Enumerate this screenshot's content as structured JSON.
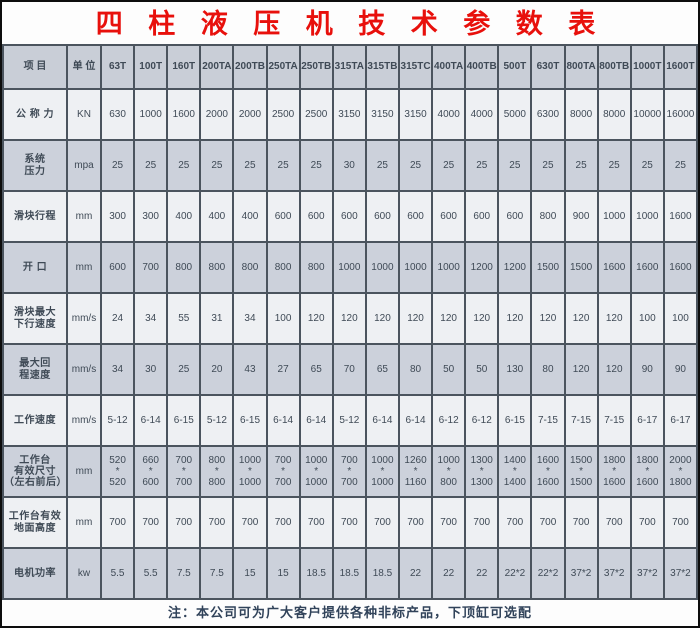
{
  "title": "四 柱 液 压 机 技 术 参 数 表",
  "note": "注：本公司可为广大客户提供各种非标产品，下顶缸可选配",
  "colors": {
    "title_red": "#e8100c",
    "grid_line": "#4b545e",
    "row_shaded": "#ccd1db",
    "row_plain": "#eef0f3",
    "header_bg": "#c9ced7",
    "note_text": "#31435a"
  },
  "table": {
    "header": [
      "项  目",
      "单 位",
      "63T",
      "100T",
      "160T",
      "200TA",
      "200TB",
      "250TA",
      "250TB",
      "315TA",
      "315TB",
      "315TC",
      "400TA",
      "400TB",
      "500T",
      "630T",
      "800TA",
      "800TB",
      "1000T",
      "1600T"
    ],
    "rows": [
      {
        "label": "公 称 力",
        "unit": "KN",
        "values": [
          "630",
          "1000",
          "1600",
          "2000",
          "2000",
          "2500",
          "2500",
          "3150",
          "3150",
          "3150",
          "4000",
          "4000",
          "5000",
          "6300",
          "8000",
          "8000",
          "10000",
          "16000"
        ]
      },
      {
        "label": "系统\n压力",
        "unit": "mpa",
        "values": [
          "25",
          "25",
          "25",
          "25",
          "25",
          "25",
          "25",
          "30",
          "25",
          "25",
          "25",
          "25",
          "25",
          "25",
          "25",
          "25",
          "25",
          "25"
        ]
      },
      {
        "label": "滑块行程",
        "unit": "mm",
        "values": [
          "300",
          "300",
          "400",
          "400",
          "400",
          "600",
          "600",
          "600",
          "600",
          "600",
          "600",
          "600",
          "600",
          "800",
          "900",
          "1000",
          "1000",
          "1600"
        ]
      },
      {
        "label": "开  口",
        "unit": "mm",
        "values": [
          "600",
          "700",
          "800",
          "800",
          "800",
          "800",
          "800",
          "1000",
          "1000",
          "1000",
          "1000",
          "1200",
          "1200",
          "1500",
          "1500",
          "1600",
          "1600",
          "1600"
        ]
      },
      {
        "label": "滑块最大\n下行速度",
        "unit": "mm/s",
        "values": [
          "24",
          "34",
          "55",
          "31",
          "34",
          "100",
          "120",
          "120",
          "120",
          "120",
          "120",
          "120",
          "120",
          "120",
          "120",
          "120",
          "100",
          "100"
        ]
      },
      {
        "label": "最大回\n程速度",
        "unit": "mm/s",
        "values": [
          "34",
          "30",
          "25",
          "20",
          "43",
          "27",
          "65",
          "70",
          "65",
          "80",
          "50",
          "50",
          "130",
          "80",
          "120",
          "120",
          "90",
          "90"
        ]
      },
      {
        "label": "工作速度",
        "unit": "mm/s",
        "values": [
          "5-12",
          "6-14",
          "6-15",
          "5-12",
          "6-15",
          "6-14",
          "6-14",
          "5-12",
          "6-14",
          "6-14",
          "6-12",
          "6-12",
          "6-15",
          "7-15",
          "7-15",
          "7-15",
          "6-17",
          "6-17"
        ]
      },
      {
        "label": "工作台\n有效尺寸\n（左右前后）",
        "unit": "mm",
        "values": [
          "520\n*\n520",
          "660\n*\n600",
          "700\n*\n700",
          "800\n*\n800",
          "1000\n*\n1000",
          "700\n*\n700",
          "1000\n*\n1000",
          "700\n*\n700",
          "1000\n*\n1000",
          "1260\n*\n1160",
          "1000\n*\n800",
          "1300\n*\n1300",
          "1400\n*\n1400",
          "1600\n*\n1600",
          "1500\n*\n1500",
          "1800\n*\n1600",
          "1800\n*\n1600",
          "2000\n*\n1800"
        ]
      },
      {
        "label": "工作台有效\n地面高度",
        "unit": "mm",
        "values": [
          "700",
          "700",
          "700",
          "700",
          "700",
          "700",
          "700",
          "700",
          "700",
          "700",
          "700",
          "700",
          "700",
          "700",
          "700",
          "700",
          "700",
          "700"
        ]
      },
      {
        "label": "电机功率",
        "unit": "kw",
        "values": [
          "5.5",
          "5.5",
          "7.5",
          "7.5",
          "15",
          "15",
          "18.5",
          "18.5",
          "18.5",
          "22",
          "22",
          "22",
          "22*2",
          "22*2",
          "37*2",
          "37*2",
          "37*2",
          "37*2"
        ]
      }
    ]
  }
}
